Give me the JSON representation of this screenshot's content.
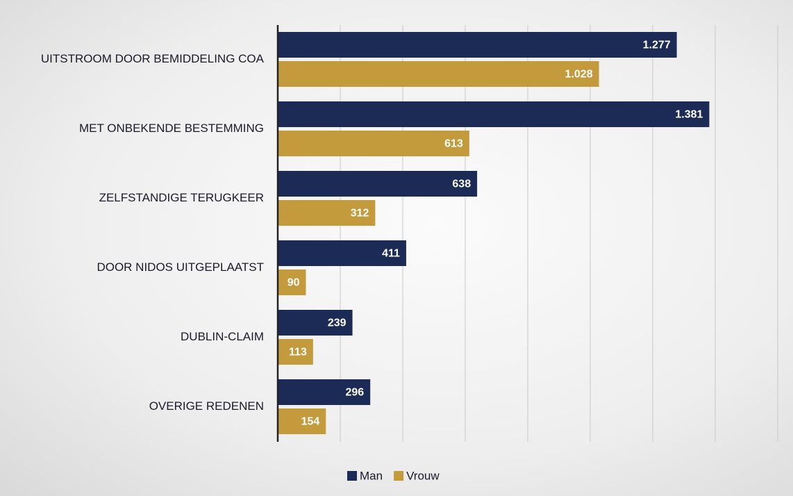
{
  "chart_data": {
    "type": "barh",
    "categories": [
      "UITSTROOM DOOR BEMIDDELING COA",
      "MET ONBEKENDE BESTEMMING",
      "ZELFSTANDIGE TERUGKEER",
      "DOOR NIDOS UITGEPLAATST",
      "DUBLIN-CLAIM",
      "OVERIGE REDENEN"
    ],
    "series": [
      {
        "name": "Man",
        "color": "#1c2a56",
        "values": [
          1277,
          1381,
          638,
          411,
          239,
          296
        ],
        "value_labels": [
          "1.277",
          "1.381",
          "638",
          "411",
          "239",
          "296"
        ]
      },
      {
        "name": "Vrouw",
        "color": "#c49b3c",
        "values": [
          1028,
          613,
          312,
          90,
          113,
          154
        ],
        "value_labels": [
          "1.028",
          "613",
          "312",
          "90",
          "113",
          "154"
        ]
      }
    ],
    "xlim": [
      0,
      1600
    ],
    "xticks": [
      0,
      200,
      400,
      600,
      800,
      1000,
      1200,
      1400,
      1600
    ],
    "grid": true,
    "legend": "bottom"
  }
}
